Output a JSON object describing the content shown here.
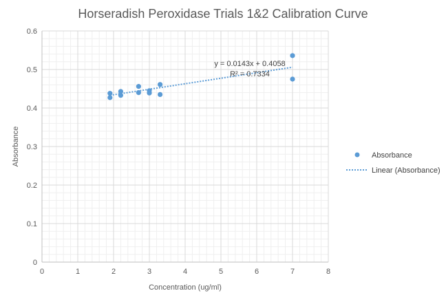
{
  "chart_data": {
    "type": "scatter",
    "title": "Horseradish Peroxidase Trials 1&2 Calibration Curve",
    "xlabel": "Concentration (ug/ml)",
    "ylabel": "Absorbance",
    "xlim": [
      0,
      8
    ],
    "ylim": [
      0,
      0.6
    ],
    "xticks": [
      "0",
      "1",
      "2",
      "3",
      "4",
      "5",
      "6",
      "7",
      "8"
    ],
    "yticks": [
      "0",
      "0.1",
      "0.2",
      "0.3",
      "0.4",
      "0.5",
      "0.6"
    ],
    "grid": true,
    "legend_position": "right",
    "series": [
      {
        "name": "Absorbance",
        "color": "#5B9BD5",
        "x": [
          1.9,
          1.9,
          2.2,
          2.2,
          2.7,
          2.7,
          3.0,
          3.0,
          3.3,
          3.3,
          7,
          7
        ],
        "y": [
          0.438,
          0.427,
          0.443,
          0.433,
          0.456,
          0.44,
          0.445,
          0.439,
          0.461,
          0.435,
          0.536,
          0.475
        ]
      }
    ],
    "trendline": {
      "name": "Linear (Absorbance)",
      "type": "linear",
      "slope": 0.0143,
      "intercept": 0.4058,
      "x_range": [
        1.9,
        7
      ],
      "equation": "y = 0.0143x + 0.4058",
      "r_squared": "R² = 0.7334",
      "color": "#5B9BD5"
    }
  }
}
